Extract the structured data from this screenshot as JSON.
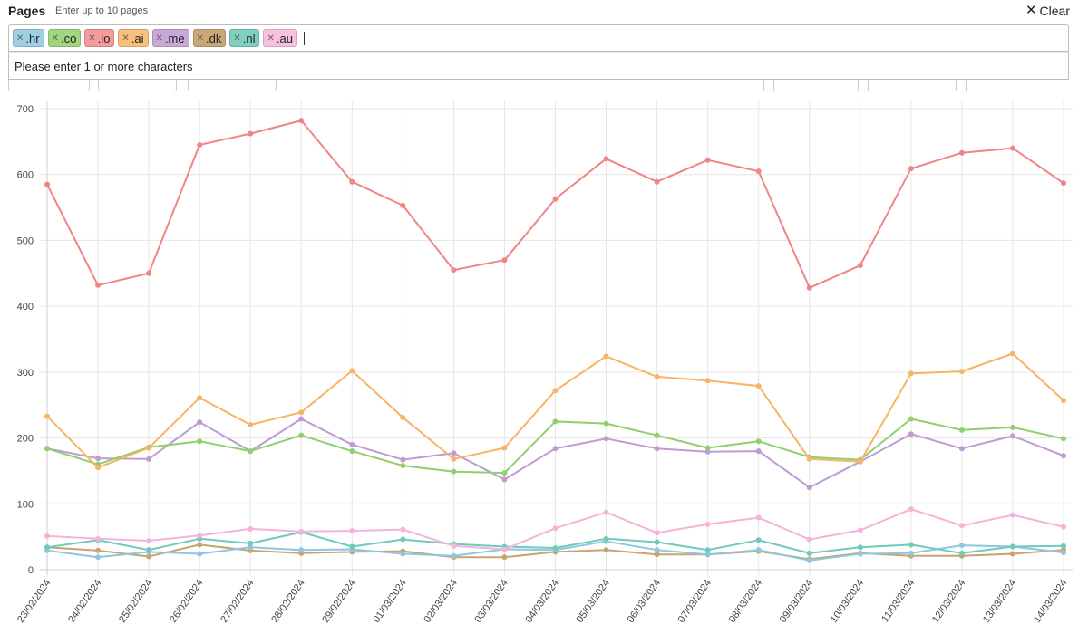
{
  "header": {
    "title": "Pages",
    "hint": "Enter up to 10 pages",
    "clear_label": "Clear"
  },
  "selector": {
    "tags": [
      {
        "label": ".hr",
        "color": "#9fcfe5"
      },
      {
        "label": ".co",
        "color": "#9fd67f"
      },
      {
        "label": ".io",
        "color": "#f49b9b"
      },
      {
        "label": ".ai",
        "color": "#f9bf7c"
      },
      {
        "label": ".me",
        "color": "#c9a8d8"
      },
      {
        "label": ".dk",
        "color": "#c9a777"
      },
      {
        "label": ".nl",
        "color": "#7fd0c3"
      },
      {
        "label": ".au",
        "color": "#f8c1e0"
      }
    ],
    "message": "Please enter 1 or more characters"
  },
  "chart_data": {
    "type": "line",
    "title": "",
    "xlabel": "",
    "ylabel": "",
    "ylim": [
      0,
      700
    ],
    "yticks": [
      0,
      100,
      200,
      300,
      400,
      500,
      600,
      700
    ],
    "grid": true,
    "categories": [
      "23/02/2024",
      "24/02/2024",
      "25/02/2024",
      "26/02/2024",
      "27/02/2024",
      "28/02/2024",
      "29/02/2024",
      "01/03/2024",
      "02/03/2024",
      "03/03/2024",
      "04/03/2024",
      "05/03/2024",
      "06/03/2024",
      "07/03/2024",
      "08/03/2024",
      "09/03/2024",
      "10/03/2024",
      "11/03/2024",
      "12/03/2024",
      "13/03/2024",
      "14/03/2024"
    ],
    "series": [
      {
        "name": ".io",
        "color": "#f08585",
        "values": [
          585,
          432,
          450,
          645,
          662,
          682,
          589,
          553,
          455,
          470,
          563,
          624,
          589,
          622,
          605,
          428,
          462,
          609,
          633,
          640,
          587
        ]
      },
      {
        "name": ".ai",
        "color": "#f7b465",
        "values": [
          233,
          155,
          185,
          261,
          220,
          239,
          302,
          231,
          168,
          185,
          272,
          324,
          293,
          287,
          279,
          168,
          164,
          298,
          301,
          328,
          257
        ]
      },
      {
        "name": ".co",
        "color": "#8fcf6e",
        "values": [
          184,
          160,
          186,
          195,
          180,
          204,
          180,
          158,
          149,
          147,
          225,
          222,
          204,
          185,
          195,
          171,
          167,
          229,
          212,
          216,
          199
        ]
      },
      {
        "name": ".me",
        "color": "#bf9bd3",
        "values": [
          184,
          169,
          168,
          224,
          180,
          229,
          190,
          167,
          177,
          137,
          184,
          199,
          184,
          179,
          180,
          125,
          164,
          206,
          184,
          203,
          173
        ]
      },
      {
        "name": ".au",
        "color": "#f5b3da",
        "values": [
          51,
          47,
          44,
          52,
          62,
          58,
          59,
          61,
          36,
          31,
          63,
          87,
          56,
          69,
          79,
          46,
          60,
          92,
          67,
          83,
          65
        ]
      },
      {
        "name": ".nl",
        "color": "#6fcabb",
        "values": [
          34,
          45,
          30,
          47,
          40,
          57,
          35,
          46,
          39,
          35,
          33,
          47,
          42,
          30,
          45,
          25,
          34,
          38,
          25,
          35,
          36
        ]
      },
      {
        "name": ".hr",
        "color": "#8ec7e2",
        "values": [
          29,
          19,
          27,
          24,
          34,
          30,
          31,
          24,
          21,
          31,
          30,
          43,
          30,
          23,
          30,
          14,
          24,
          25,
          37,
          35,
          26
        ]
      },
      {
        "name": ".dk",
        "color": "#c8a46e",
        "values": [
          34,
          29,
          20,
          38,
          29,
          25,
          27,
          28,
          19,
          19,
          27,
          30,
          23,
          23,
          28,
          16,
          25,
          21,
          21,
          24,
          30
        ]
      }
    ]
  }
}
